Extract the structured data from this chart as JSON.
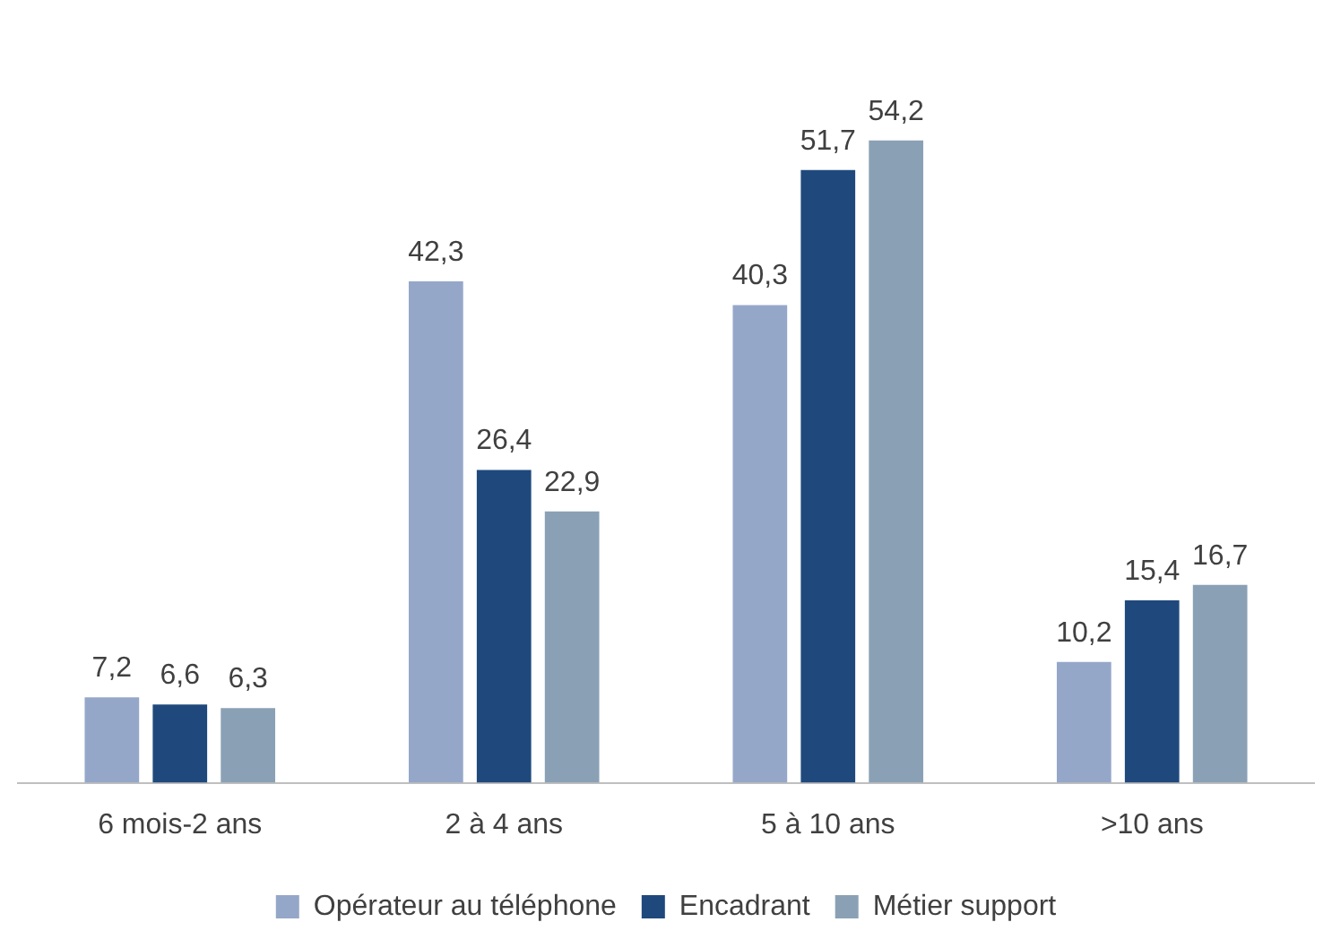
{
  "chart_data": {
    "type": "bar",
    "categories": [
      "6 mois-2 ans",
      "2 à 4 ans",
      "5 à 10 ans",
      ">10 ans"
    ],
    "series": [
      {
        "name": "Opérateur au téléphone",
        "color": "#95a7c9",
        "values": [
          7.2,
          42.3,
          40.3,
          10.2
        ],
        "value_labels": [
          "7,2",
          "42,3",
          "40,3",
          "10,2"
        ]
      },
      {
        "name": "Encadrant",
        "color": "#1f497d",
        "values": [
          6.6,
          26.4,
          51.7,
          15.4
        ],
        "value_labels": [
          "6,6",
          "26,4",
          "51,7",
          "15,4"
        ]
      },
      {
        "name": "Métier support",
        "color": "#8aa1b5",
        "values": [
          6.3,
          22.9,
          54.2,
          16.7
        ],
        "value_labels": [
          "6,3",
          "22,9",
          "54,2",
          "16,7"
        ]
      }
    ],
    "grid": false,
    "legend": "bottom",
    "tick_labels": "x"
  }
}
